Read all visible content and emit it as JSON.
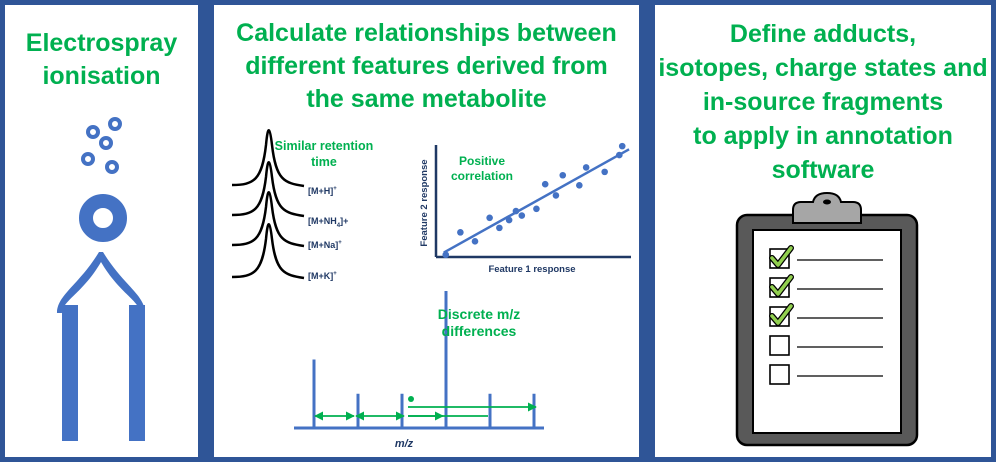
{
  "panels": {
    "electrospray": {
      "title_lines": [
        "Electrospray",
        "ionisation"
      ],
      "colors": {
        "droplet": "#4472C4",
        "needle": "#4472C4"
      }
    },
    "relationships": {
      "title_lines": [
        "Calculate relationships between",
        "different features derived from",
        "the same metabolite"
      ],
      "retention": {
        "label_lines": [
          "Similar retention",
          "time"
        ],
        "adduct_labels": [
          "[M+H]",
          "[M+NH",
          "[M+Na]",
          "[M+K]"
        ],
        "adduct_suffixes": [
          "+",
          "4",
          "+",
          "+"
        ],
        "adduct_suffix_2": "]+"
      },
      "correlation": {
        "label_lines": [
          "Positive",
          "correlation"
        ],
        "xlabel": "Feature 1 response",
        "ylabel": "Feature 2 response"
      },
      "mz": {
        "label_lines": [
          "Discrete m/z",
          "differences"
        ],
        "xlabel": "m/z"
      },
      "colors": {
        "accent": "#00B050",
        "line": "#4472C4",
        "text": "#1F3864"
      }
    },
    "annotation": {
      "title_lines": [
        "Define adducts,",
        "isotopes, charge states and",
        "in-source fragments",
        "to apply in annotation",
        "software"
      ],
      "checklist": {
        "checked": [
          true,
          true,
          true,
          false,
          false
        ]
      },
      "colors": {
        "board": "#595959",
        "check": "#92D050"
      }
    }
  },
  "chart_data": [
    {
      "type": "scatter",
      "title": "",
      "xlabel": "Feature 1 response",
      "ylabel": "Feature 2 response",
      "x": [
        1.0,
        2.5,
        4.0,
        5.5,
        6.5,
        7.5,
        8.2,
        8.8,
        10.3,
        11.2,
        12.3,
        13.0,
        14.7,
        15.4,
        17.3,
        18.8,
        19.1
      ],
      "y": [
        0.2,
        2.2,
        1.4,
        3.5,
        2.6,
        3.3,
        4.1,
        3.7,
        4.3,
        6.5,
        5.5,
        7.3,
        6.4,
        8.0,
        7.6,
        9.1,
        9.9
      ],
      "trendline": true,
      "xlim": [
        0,
        20
      ],
      "ylim": [
        0,
        10
      ]
    },
    {
      "type": "bar",
      "title": "",
      "xlabel": "m/z",
      "ylabel": "",
      "x": [
        0,
        4,
        8,
        12,
        16,
        20
      ],
      "values": [
        0.5,
        0.25,
        0.25,
        1.0,
        0.25,
        0.25
      ],
      "xlim": [
        -1,
        21
      ],
      "ylim": [
        0,
        1
      ]
    }
  ]
}
